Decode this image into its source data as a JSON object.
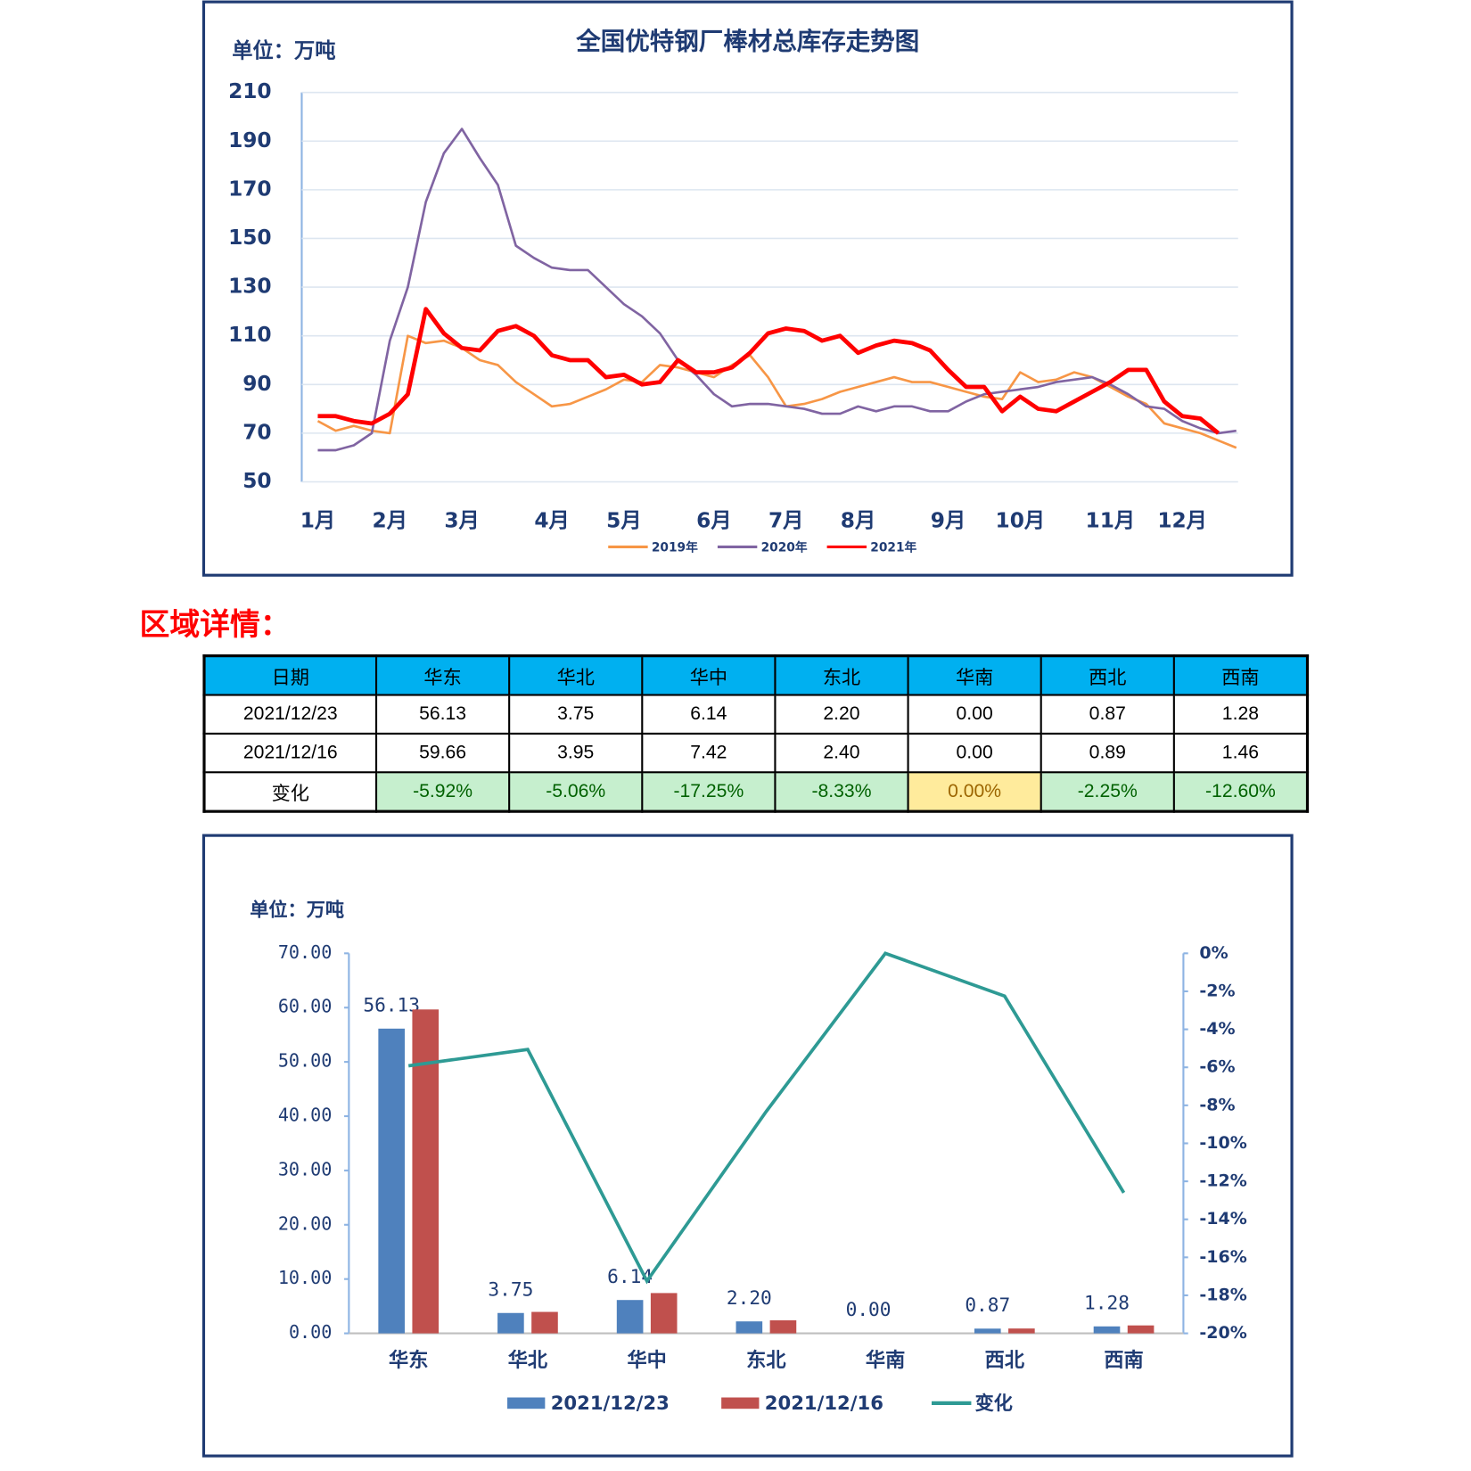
{
  "line_chart": {
    "type": "line",
    "title": "全国优特钢厂棒材总库存走势图",
    "unit": "单位：万吨",
    "categories": [
      "1月",
      null,
      null,
      null,
      "2月",
      null,
      null,
      null,
      "3月",
      null,
      null,
      null,
      null,
      "4月",
      null,
      null,
      null,
      "5月",
      null,
      null,
      null,
      null,
      "6月",
      null,
      null,
      null,
      "7月",
      null,
      null,
      null,
      "8月",
      null,
      null,
      null,
      null,
      "9月",
      null,
      null,
      null,
      "10月",
      null,
      null,
      null,
      null,
      "11月",
      null,
      null,
      null,
      "12月",
      null,
      null,
      null
    ],
    "series": [
      {
        "name": "2019年",
        "color": "#f79646",
        "width": 2.5,
        "values": [
          75,
          71,
          73,
          71,
          70,
          110,
          107,
          108,
          105,
          100,
          98,
          91,
          86,
          81,
          82,
          85,
          88,
          92,
          91,
          98,
          97,
          95,
          93,
          98,
          102,
          93,
          81,
          82,
          84,
          87,
          89,
          91,
          93,
          91,
          91,
          89,
          87,
          85,
          84,
          95,
          91,
          92,
          95,
          93,
          89,
          85,
          82,
          74,
          72,
          70,
          67,
          64
        ]
      },
      {
        "name": "2020年",
        "color": "#8064a2",
        "width": 2.5,
        "values": [
          63,
          63,
          65,
          70,
          108,
          130,
          165,
          185,
          195,
          183,
          172,
          147,
          142,
          138,
          137,
          137,
          130,
          123,
          118,
          111,
          100,
          94,
          86,
          81,
          82,
          82,
          81,
          80,
          78,
          78,
          81,
          79,
          81,
          81,
          79,
          79,
          83,
          86,
          87,
          88,
          89,
          91,
          92,
          93,
          90,
          86,
          81,
          80,
          75,
          72,
          70,
          71
        ]
      },
      {
        "name": "2021年",
        "color": "#ff0000",
        "width": 4.5,
        "values": [
          77,
          77,
          75,
          74,
          78,
          86,
          121,
          111,
          105,
          104,
          112,
          114,
          110,
          102,
          100,
          100,
          93,
          94,
          90,
          91,
          100,
          95,
          95,
          97,
          103,
          111,
          113,
          112,
          108,
          110,
          103,
          106,
          108,
          107,
          104,
          96,
          89,
          89,
          79,
          85,
          80,
          79,
          83,
          87,
          91,
          96,
          96,
          83,
          77,
          76,
          70,
          null
        ]
      }
    ],
    "ylim": [
      50,
      210
    ],
    "yticks": [
      50,
      70,
      90,
      110,
      130,
      150,
      170,
      190,
      210
    ],
    "grid": true
  },
  "section_title": "区域详情：",
  "table": {
    "header": [
      "日期",
      "华东",
      "华北",
      "华中",
      "东北",
      "华南",
      "西北",
      "西南"
    ],
    "rows": [
      [
        "2021/12/23",
        "56.13",
        "3.75",
        "6.14",
        "2.20",
        "0.00",
        "0.87",
        "1.28"
      ],
      [
        "2021/12/16",
        "59.66",
        "3.95",
        "7.42",
        "2.40",
        "0.00",
        "0.89",
        "1.46"
      ],
      [
        "变化",
        "-5.92%",
        "-5.06%",
        "-17.25%",
        "-8.33%",
        "0.00%",
        "-2.25%",
        "-12.60%"
      ]
    ]
  },
  "combo_chart": {
    "type": "bar",
    "unit": "单位：万吨",
    "categories": [
      "华东",
      "华北",
      "华中",
      "东北",
      "华南",
      "西北",
      "西南"
    ],
    "series": [
      {
        "name": "2021/12/23",
        "color": "#4f81bd",
        "values": [
          56.13,
          3.75,
          6.14,
          2.2,
          0,
          0.87,
          1.28
        ],
        "value_labels": [
          "56.13",
          "3.75",
          "6.14",
          "2.20",
          "0.00",
          "0.87",
          "1.28"
        ]
      },
      {
        "name": "2021/12/16",
        "color": "#c0504d",
        "values": [
          59.66,
          3.95,
          7.42,
          2.4,
          0,
          0.89,
          1.46
        ]
      },
      {
        "name": "变化",
        "type": "line",
        "axis": "y2",
        "color": "#2e9a94",
        "values": [
          -5.92,
          -5.06,
          -17.25,
          -8.33,
          0,
          -2.25,
          -12.6
        ]
      }
    ],
    "ylim": [
      0,
      70
    ],
    "yticks": [
      {
        "value": 0,
        "label": "0.00"
      },
      {
        "value": 10,
        "label": "10.00"
      },
      {
        "value": 20,
        "label": "20.00"
      },
      {
        "value": 30,
        "label": "30.00"
      },
      {
        "value": 40,
        "label": "40.00"
      },
      {
        "value": 50,
        "label": "50.00"
      },
      {
        "value": 60,
        "label": "60.00"
      },
      {
        "value": 70,
        "label": "70.00"
      }
    ],
    "y2lim": [
      -20,
      0
    ],
    "y2ticks": [
      {
        "value": 0,
        "label": "0%"
      },
      {
        "value": -2,
        "label": "-2%"
      },
      {
        "value": -4,
        "label": "-4%"
      },
      {
        "value": -6,
        "label": "-6%"
      },
      {
        "value": -8,
        "label": "-8%"
      },
      {
        "value": -10,
        "label": "-10%"
      },
      {
        "value": -12,
        "label": "-12%"
      },
      {
        "value": -14,
        "label": "-14%"
      },
      {
        "value": -16,
        "label": "-16%"
      },
      {
        "value": -18,
        "label": "-18%"
      },
      {
        "value": -20,
        "label": "-20%"
      }
    ]
  }
}
